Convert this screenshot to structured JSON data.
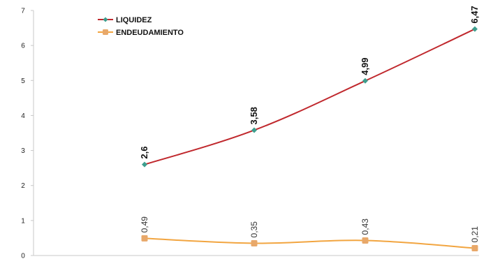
{
  "chart_data": {
    "type": "line",
    "title": "",
    "xlabel": "",
    "ylabel": "",
    "x": [
      1,
      2,
      3,
      4
    ],
    "ylim": [
      0,
      7
    ],
    "yticks": [
      "0",
      "1",
      "2",
      "3",
      "4",
      "5",
      "6",
      "7"
    ],
    "grid": false,
    "legend_position": "top-left",
    "series": [
      {
        "name": "LIQUIDEZ",
        "values": [
          2.6,
          3.58,
          4.99,
          6.47
        ],
        "labels": [
          "2,6",
          "3,58",
          "4,99",
          "6,47"
        ],
        "line_color": "#c0282d",
        "marker_color": "#3d9e8e",
        "marker": "diamond",
        "label_style": "bold"
      },
      {
        "name": "ENDEUDAMIENTO",
        "values": [
          0.49,
          0.35,
          0.43,
          0.21
        ],
        "labels": [
          "0,49",
          "0,35",
          "0,43",
          "0,21"
        ],
        "line_color": "#f2a540",
        "marker_color": "#e8a86a",
        "marker": "square",
        "label_style": "normal"
      }
    ]
  }
}
